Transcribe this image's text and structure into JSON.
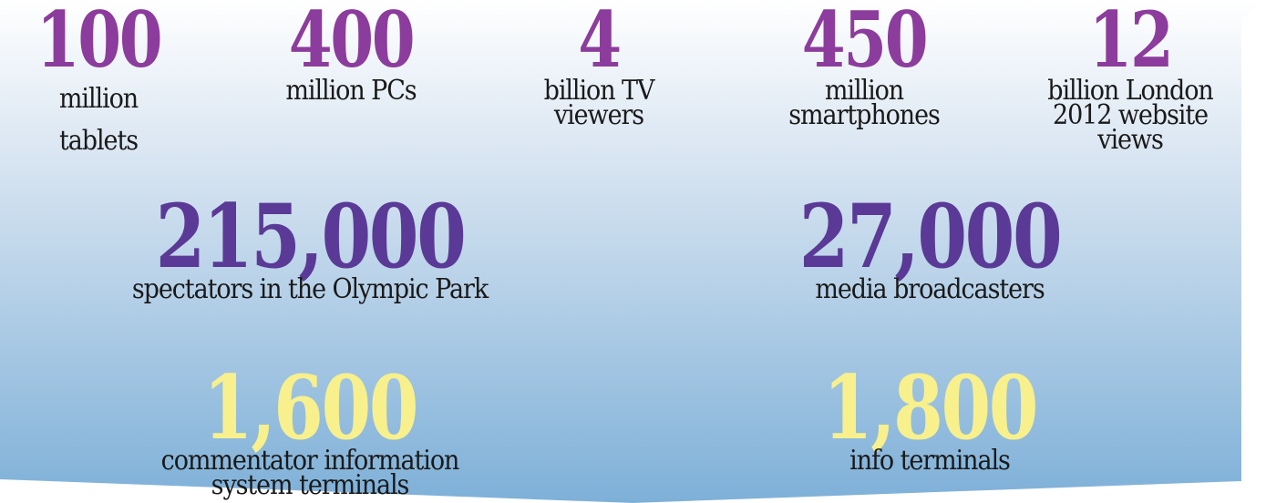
{
  "stats": [
    {
      "number": "100",
      "label_lines": [
        "million",
        "tablets"
      ]
    },
    {
      "number": "400",
      "label_lines": [
        "million PCs"
      ]
    },
    {
      "number": "4",
      "label_lines": [
        "billion TV",
        "viewers"
      ]
    },
    {
      "number": "450",
      "label_lines": [
        "million",
        "smartphones"
      ]
    },
    {
      "number": "12",
      "label_lines": [
        "billion London",
        "2012 website",
        "views"
      ]
    },
    {
      "number": "215,000",
      "label_lines": [
        "spectators in the Olympic Park"
      ]
    },
    {
      "number": "27,000",
      "label_lines": [
        "media broadcasters"
      ]
    },
    {
      "number": "1,600",
      "label_lines": [
        "commentator information",
        "system terminals"
      ]
    },
    {
      "number": "1,800",
      "label_lines": [
        "info terminals"
      ]
    }
  ]
}
